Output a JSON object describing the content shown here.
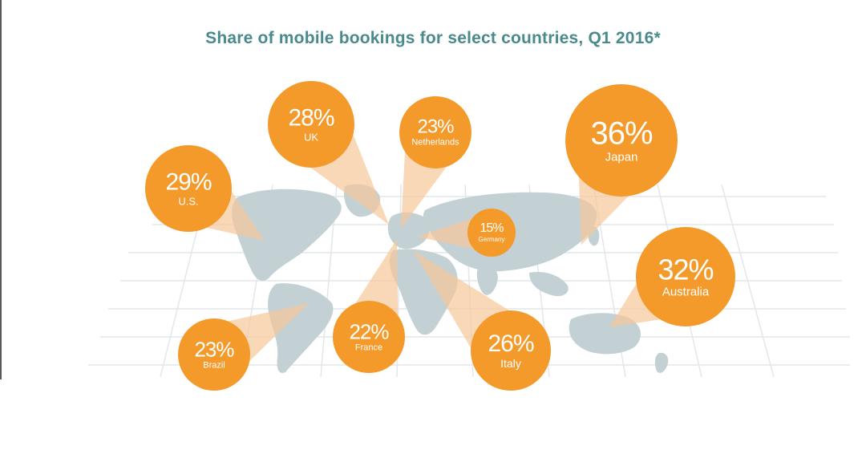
{
  "chart_data": {
    "type": "pie",
    "title": "Share of mobile bookings for select countries, Q1 2016*",
    "unit": "%",
    "categories": [
      "U.S.",
      "UK",
      "Netherlands",
      "Germany",
      "Japan",
      "Australia",
      "Brazil",
      "France",
      "Italy"
    ],
    "values": [
      29,
      28,
      23,
      15,
      36,
      32,
      23,
      22,
      26
    ],
    "labels": [
      "29%",
      "28%",
      "23%",
      "15%",
      "36%",
      "32%",
      "23%",
      "22%",
      "26%"
    ]
  },
  "colors": {
    "bubble": "#f39a2b",
    "beam": "#f6c89a",
    "land": "#c3d1d5",
    "grid": "#e6e9eb",
    "title": "#4a8a8c"
  }
}
